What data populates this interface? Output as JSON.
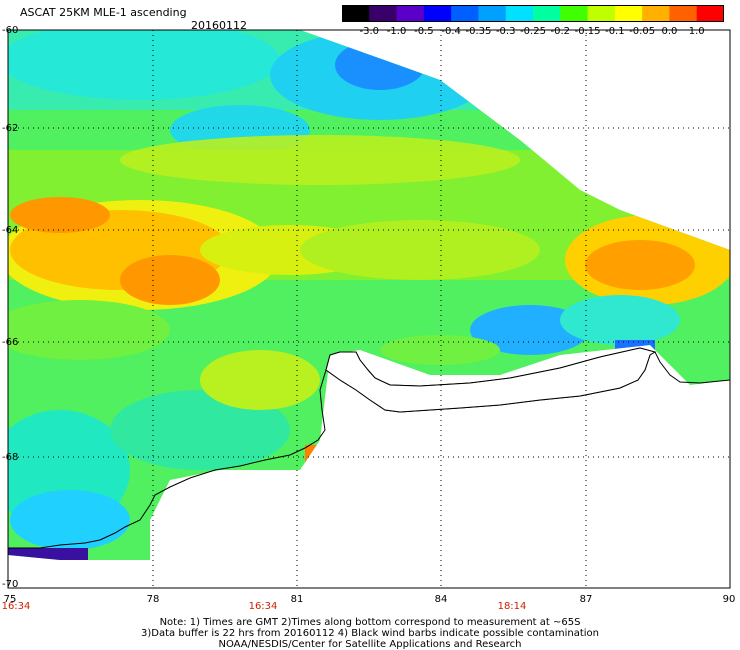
{
  "header": {
    "title": "ASCAT 25KM MLE-1 ascending",
    "date": "20160112"
  },
  "colorbar": {
    "labels": [
      "-3.0",
      "-1.0",
      "-0.5",
      "-0.4",
      "-0.35",
      "-0.3",
      "-0.25",
      "-0.2",
      "-0.15",
      "-0.1",
      "-0.05",
      "0.0",
      "1.0"
    ],
    "colors": [
      "#000000",
      "#3a006a",
      "#5a00c8",
      "#0000ff",
      "#0060ff",
      "#00a0ff",
      "#00e0ff",
      "#00ffa0",
      "#40ff00",
      "#c0ff00",
      "#ffff00",
      "#ffb000",
      "#ff6000",
      "#ff0000"
    ]
  },
  "axes": {
    "lat_labels": [
      "-60",
      "-62",
      "-64",
      "-66",
      "-68",
      "-70"
    ],
    "lon_labels": [
      "75",
      "78",
      "81",
      "84",
      "87",
      "90"
    ],
    "time_labels": [
      "16:34",
      "16:34",
      "18:14"
    ]
  },
  "notes": [
    "Note: 1) Times are GMT 2)Times along bottom correspond to measurement at ~65S",
    "3)Data buffer is 22 hrs from 20160112 4) Black wind barbs indicate possible contamination",
    "NOAA/NESDIS/Center for Satellite Applications and Research"
  ]
}
